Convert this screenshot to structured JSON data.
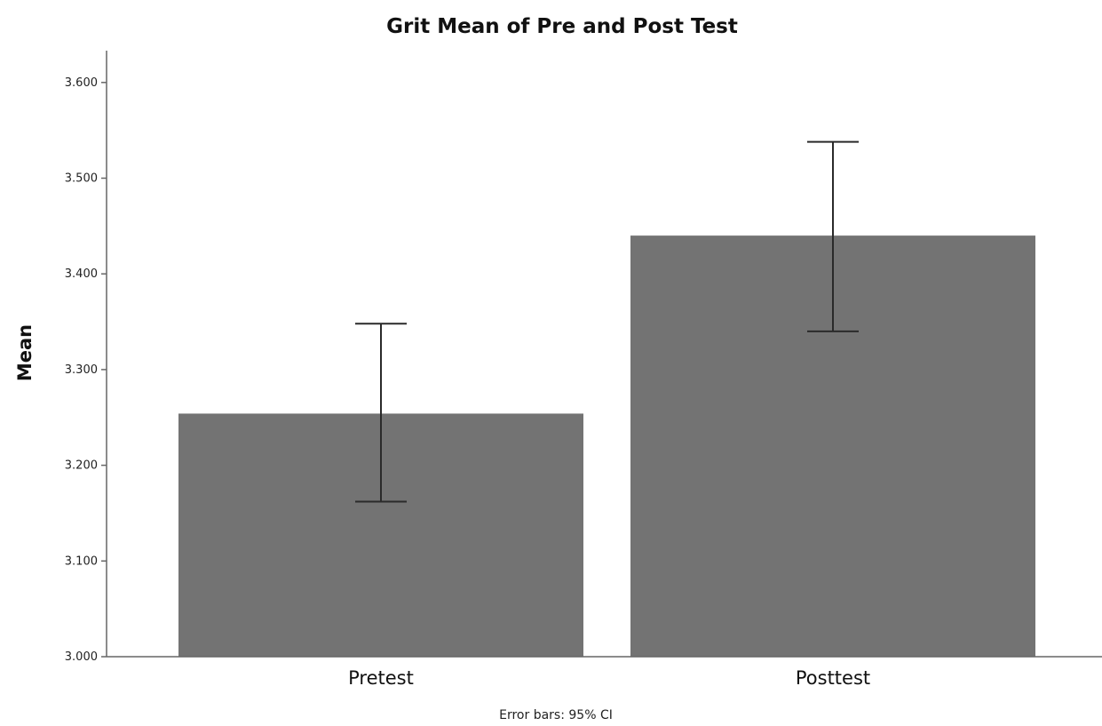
{
  "chart_data": {
    "type": "bar",
    "title": "Grit Mean of Pre and Post Test",
    "xlabel": "",
    "ylabel": "Mean",
    "categories": [
      "Pretest",
      "Posttest"
    ],
    "series": [
      {
        "values": [
          3.254,
          3.44
        ],
        "error_low": [
          3.162,
          3.34
        ],
        "error_high": [
          3.348,
          3.538
        ]
      }
    ],
    "ylim": [
      3.0,
      3.63
    ],
    "yticks": [
      3.0,
      3.1,
      3.2,
      3.3,
      3.4,
      3.5,
      3.6
    ],
    "ytick_labels": [
      "3.000",
      "3.100",
      "3.200",
      "3.300",
      "3.400",
      "3.500",
      "3.600"
    ],
    "grid": false,
    "legend": "none",
    "footnote": "Error bars: 95% CI",
    "colors": {
      "bar": "#737373",
      "error_bar": "#2a2a2a",
      "axis": "#666666"
    }
  }
}
